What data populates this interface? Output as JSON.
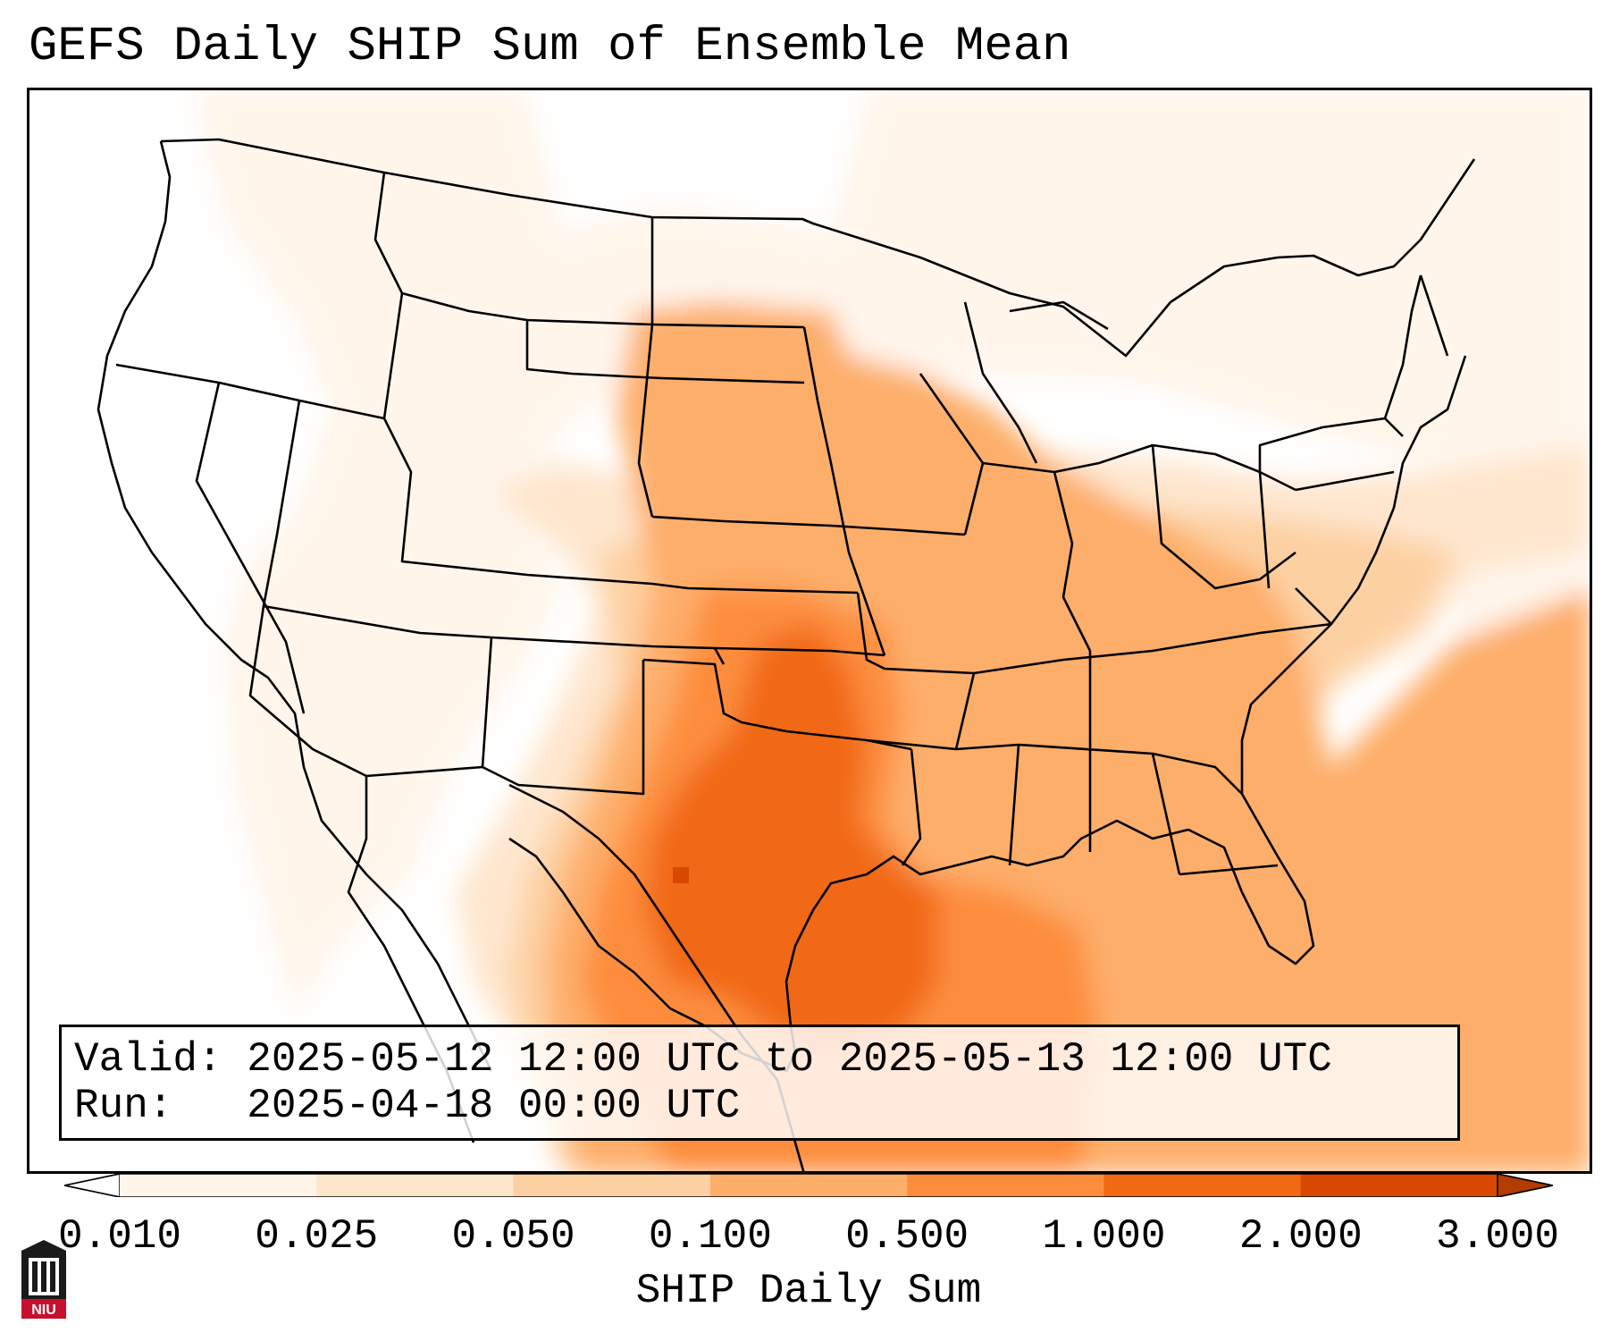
{
  "title": "GEFS Daily SHIP Sum of Ensemble Mean",
  "info": {
    "valid": "Valid: 2025-05-12 12:00 UTC to 2025-05-13 12:00 UTC",
    "run": "Run:   2025-04-18 00:00 UTC"
  },
  "colorbar": {
    "label": "SHIP Daily Sum",
    "ticks": [
      "0.010",
      "0.025",
      "0.050",
      "0.100",
      "0.500",
      "1.000",
      "2.000",
      "3.000"
    ],
    "colors": [
      "#fff5eb",
      "#fee6ce",
      "#fdd0a2",
      "#fdae6b",
      "#fd8d3c",
      "#f16913",
      "#d94801"
    ],
    "extend": "both"
  },
  "logo_text": "NIU",
  "colors": {
    "level_1": "#fff5eb",
    "level_2": "#fee6ce",
    "level_3": "#fdd0a2",
    "level_4": "#fdae6b",
    "level_5": "#fd8d3c",
    "level_6": "#f16913",
    "level_7": "#d94801",
    "logo_red": "#c8102e"
  }
}
